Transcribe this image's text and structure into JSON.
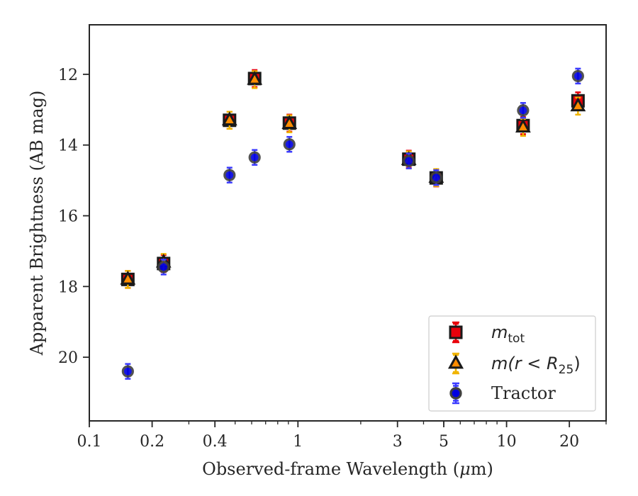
{
  "chart_data": {
    "type": "scatter",
    "xlabel_main": "Observed-frame Wavelength (",
    "xlabel_mu": "μ",
    "xlabel_unit": "m)",
    "ylabel": "Apparent Brightness (AB mag)",
    "x_scale": "log",
    "xlim": [
      0.1,
      30
    ],
    "ylim": [
      21.8,
      10.6
    ],
    "y_inverted": true,
    "x_ticks": [
      {
        "value": 0.1,
        "label": "0.1"
      },
      {
        "value": 0.2,
        "label": "0.2"
      },
      {
        "value": 0.4,
        "label": "0.4"
      },
      {
        "value": 1,
        "label": "1"
      },
      {
        "value": 3,
        "label": "3"
      },
      {
        "value": 5,
        "label": "5"
      },
      {
        "value": 10,
        "label": "10"
      },
      {
        "value": 20,
        "label": "20"
      }
    ],
    "y_ticks": [
      {
        "value": 12,
        "label": "12"
      },
      {
        "value": 14,
        "label": "14"
      },
      {
        "value": 16,
        "label": "16"
      },
      {
        "value": 18,
        "label": "18"
      },
      {
        "value": 20,
        "label": "20"
      }
    ],
    "grid": false,
    "legend_position": "lower-right",
    "series": [
      {
        "key": "mtot",
        "legend_main": "m",
        "legend_sub": "tot",
        "marker": "square",
        "fill": "#e8000b",
        "edge": "#1a1a1a",
        "err_color": "#e8000b",
        "points": [
          {
            "x": 0.153,
            "y": 17.8
          },
          {
            "x": 0.227,
            "y": 17.35
          },
          {
            "x": 0.47,
            "y": 13.3
          },
          {
            "x": 0.62,
            "y": 12.12
          },
          {
            "x": 0.91,
            "y": 13.38
          },
          {
            "x": 3.4,
            "y": 14.4
          },
          {
            "x": 4.6,
            "y": 14.93
          },
          {
            "x": 12.0,
            "y": 13.45
          },
          {
            "x": 22.0,
            "y": 12.75
          }
        ]
      },
      {
        "key": "mr25",
        "legend_main": "m",
        "legend_paren_open": "(r < R",
        "legend_sub": "25",
        "legend_paren_close": ")",
        "marker": "triangle",
        "fill": "#ff8c00",
        "edge": "#1a1a1a",
        "err_color": "#f0b400",
        "points": [
          {
            "x": 0.153,
            "y": 17.8
          },
          {
            "x": 0.227,
            "y": 17.32
          },
          {
            "x": 0.47,
            "y": 13.3
          },
          {
            "x": 0.62,
            "y": 12.15
          },
          {
            "x": 0.91,
            "y": 13.4
          },
          {
            "x": 3.4,
            "y": 14.42
          },
          {
            "x": 4.6,
            "y": 14.92
          },
          {
            "x": 12.0,
            "y": 13.5
          },
          {
            "x": 22.0,
            "y": 12.9
          }
        ]
      },
      {
        "key": "tractor",
        "legend_label": "Tractor",
        "marker": "circle",
        "fill": "#0000e0",
        "edge": "#404040",
        "err_color": "#3a3aff",
        "points": [
          {
            "x": 0.153,
            "y": 20.4
          },
          {
            "x": 0.227,
            "y": 17.45
          },
          {
            "x": 0.47,
            "y": 14.85
          },
          {
            "x": 0.62,
            "y": 14.35
          },
          {
            "x": 0.91,
            "y": 13.98
          },
          {
            "x": 3.4,
            "y": 14.45
          },
          {
            "x": 4.6,
            "y": 14.92
          },
          {
            "x": 12.0,
            "y": 13.02
          },
          {
            "x": 22.0,
            "y": 12.05
          }
        ]
      }
    ]
  }
}
